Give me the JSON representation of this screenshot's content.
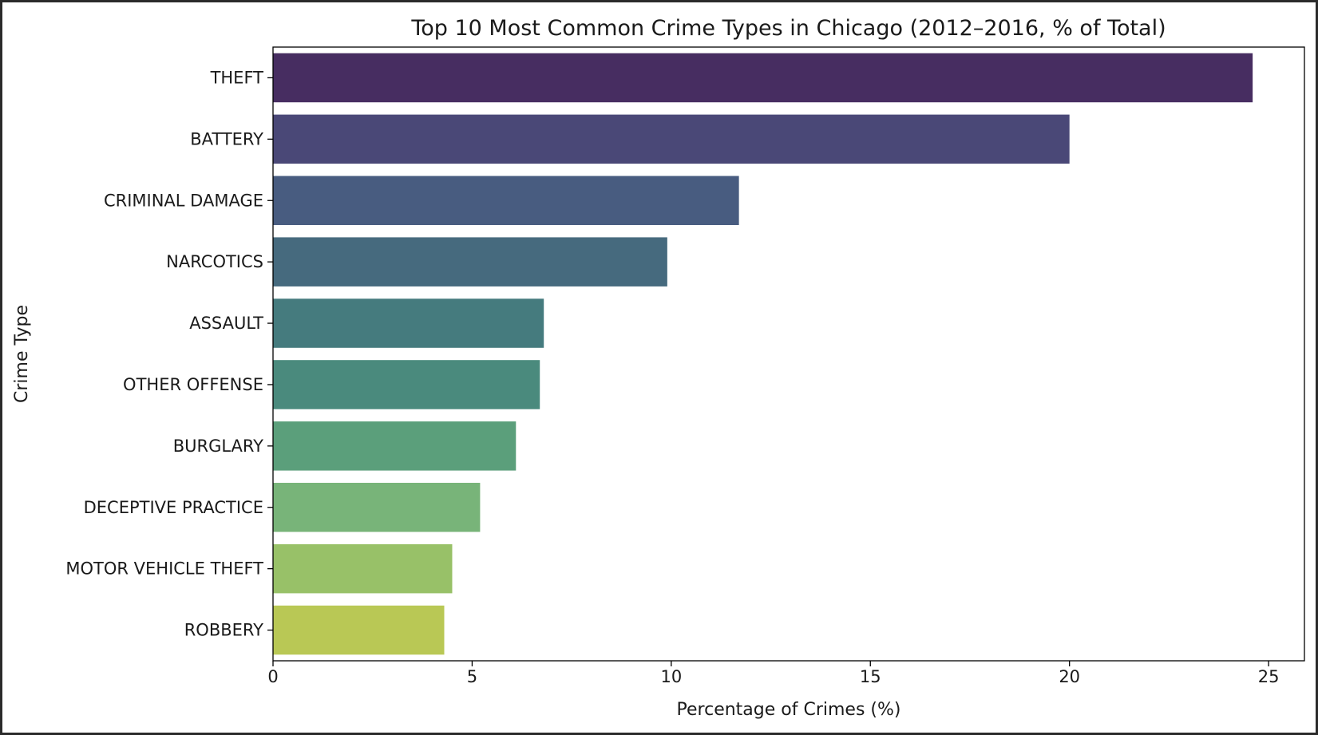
{
  "colors": {
    "frame": "#2b2b2b",
    "figure_background": "#ffffff",
    "axes_edge": "#000000"
  },
  "chart_data": {
    "type": "bar",
    "orientation": "horizontal",
    "title": "Top 10 Most Common Crime Types in Chicago (2012–2016, % of Total)",
    "xlabel": "Percentage of Crimes (%)",
    "ylabel": "Crime Type",
    "categories": [
      "THEFT",
      "BATTERY",
      "CRIMINAL DAMAGE",
      "NARCOTICS",
      "ASSAULT",
      "OTHER OFFENSE",
      "BURGLARY",
      "DECEPTIVE PRACTICE",
      "MOTOR VEHICLE THEFT",
      "ROBBERY"
    ],
    "values": [
      24.6,
      20.0,
      11.7,
      9.9,
      6.8,
      6.7,
      6.1,
      5.2,
      4.5,
      4.3
    ],
    "bar_colors": [
      "#472d61",
      "#4a4877",
      "#485c80",
      "#466a7e",
      "#457b7e",
      "#4a8a7d",
      "#5b9f7b",
      "#78b479",
      "#98c168",
      "#b9c855"
    ],
    "xlim": [
      0,
      25.9
    ],
    "xticks": [
      0,
      5,
      10,
      15,
      20,
      25
    ],
    "xtick_labels": [
      "0",
      "5",
      "10",
      "15",
      "20",
      "25"
    ],
    "grid": false,
    "legend": "none"
  }
}
